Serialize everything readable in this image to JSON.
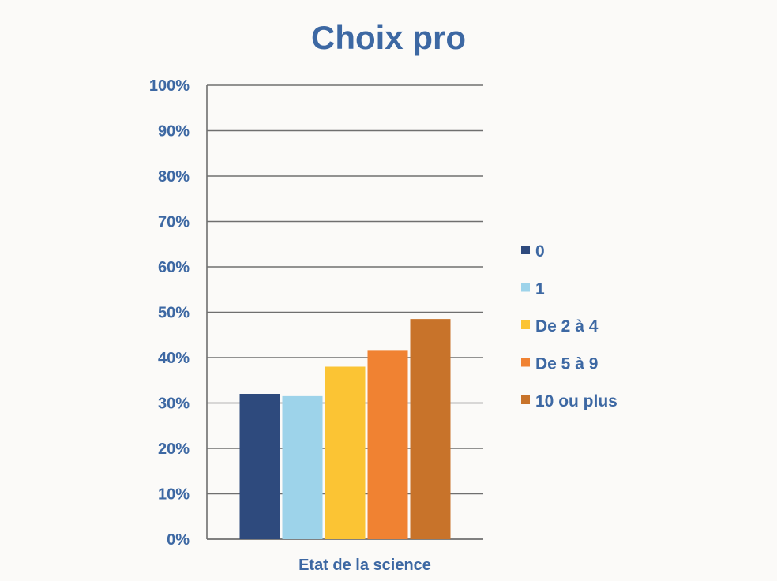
{
  "chart_data": {
    "type": "bar",
    "title": "Choix pro",
    "xlabel": "",
    "ylabel": "",
    "categories": [
      "Etat de la science"
    ],
    "ylim": [
      0,
      100
    ],
    "yticks": [
      "0%",
      "10%",
      "20%",
      "30%",
      "40%",
      "50%",
      "60%",
      "70%",
      "80%",
      "90%",
      "100%"
    ],
    "grid": true,
    "legend_position": "right",
    "series": [
      {
        "name": "0",
        "values": [
          32
        ],
        "color": "#2e4a7d"
      },
      {
        "name": "1",
        "values": [
          31.5
        ],
        "color": "#9dd3ea"
      },
      {
        "name": "De 2 à 4",
        "values": [
          38
        ],
        "color": "#fbc434"
      },
      {
        "name": "De 5 à 9",
        "values": [
          41.5
        ],
        "color": "#f08232"
      },
      {
        "name": "10 ou plus",
        "values": [
          48.5
        ],
        "color": "#c8732a"
      }
    ]
  }
}
